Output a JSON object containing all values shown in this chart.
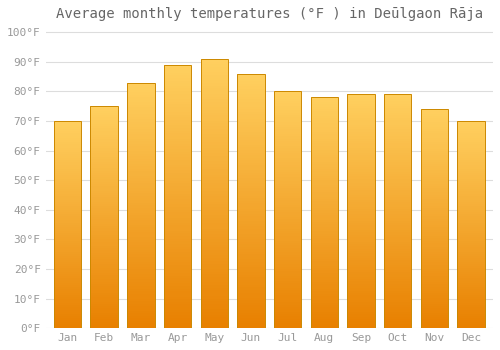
{
  "months": [
    "Jan",
    "Feb",
    "Mar",
    "Apr",
    "May",
    "Jun",
    "Jul",
    "Aug",
    "Sep",
    "Oct",
    "Nov",
    "Dec"
  ],
  "values": [
    70,
    75,
    83,
    89,
    91,
    86,
    80,
    78,
    79,
    79,
    74,
    70
  ],
  "bar_color_top": "#FFD060",
  "bar_color_bottom": "#E88000",
  "bar_edge_color": "#CC8800",
  "background_color": "#FFFFFF",
  "grid_color": "#DDDDDD",
  "title": "Average monthly temperatures (°F ) in Deūlgaon Rāja",
  "title_fontsize": 10,
  "yticks": [
    0,
    10,
    20,
    30,
    40,
    50,
    60,
    70,
    80,
    90,
    100
  ],
  "ylim": [
    0,
    102
  ],
  "tick_fontsize": 8,
  "tick_label_color": "#999999",
  "title_color": "#666666"
}
